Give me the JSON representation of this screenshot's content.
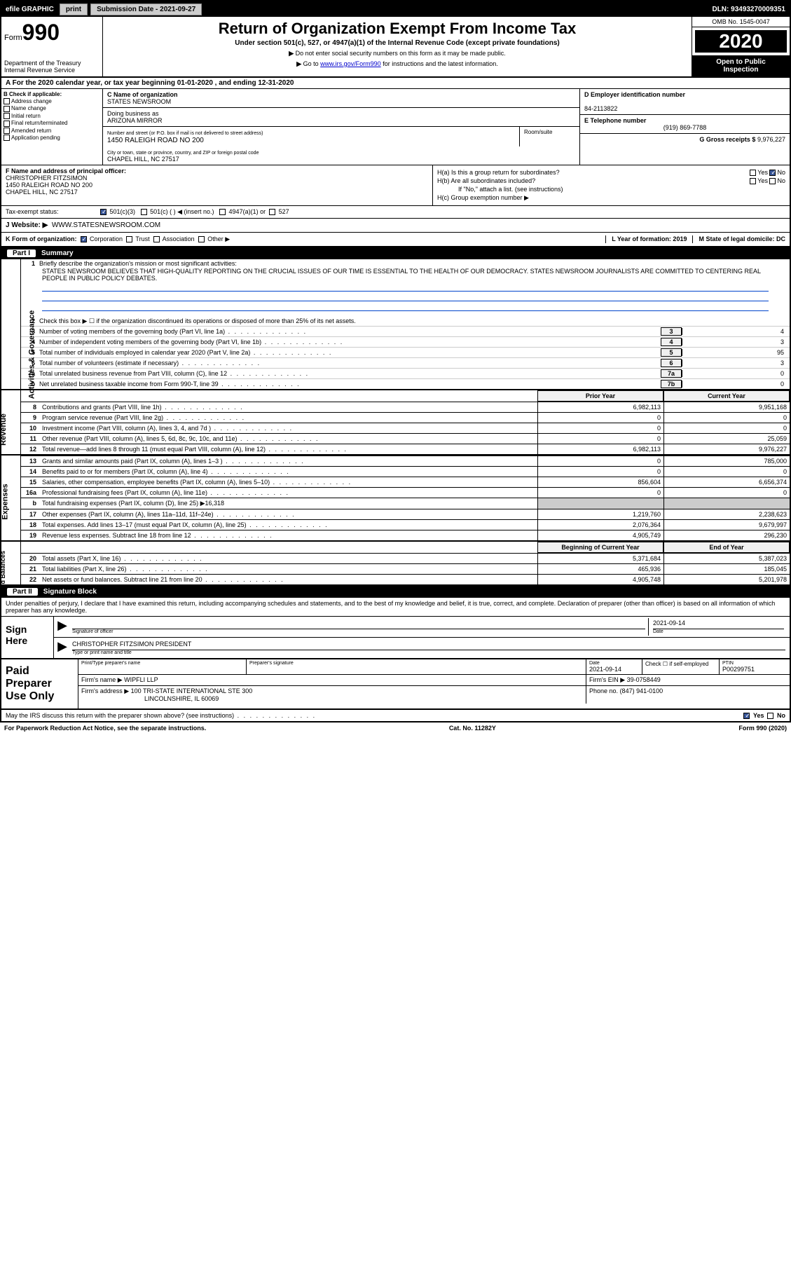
{
  "topbar": {
    "efile": "efile GRAPHIC",
    "print": "print",
    "subdate_label": "Submission Date - ",
    "subdate": "2021-09-27",
    "dln": "DLN: 93493270009351"
  },
  "header": {
    "form": "Form",
    "formnum": "990",
    "dept": "Department of the Treasury\nInternal Revenue Service",
    "title": "Return of Organization Exempt From Income Tax",
    "sub": "Under section 501(c), 527, or 4947(a)(1) of the Internal Revenue Code (except private foundations)",
    "note1": "Do not enter social security numbers on this form as it may be made public.",
    "note2": "Go to",
    "link": "www.irs.gov/Form990",
    "note3": "for instructions and the latest information.",
    "omb": "OMB No. 1545-0047",
    "year": "2020",
    "insp1": "Open to Public",
    "insp2": "Inspection"
  },
  "sectionA": "For the 2020 calendar year, or tax year beginning 01-01-2020    , and ending 12-31-2020",
  "colB": {
    "hdr": "B Check if applicable:",
    "items": [
      "Address change",
      "Name change",
      "Initial return",
      "Final return/terminated",
      "Amended return",
      "Application pending"
    ]
  },
  "colC": {
    "name_label": "C Name of organization",
    "name": "STATES NEWSROOM",
    "dba_label": "Doing business as",
    "dba": "ARIZONA MIRROR",
    "addr_label": "Number and street (or P.O. box if mail is not delivered to street address)",
    "room_label": "Room/suite",
    "addr": "1450 RALEIGH ROAD NO 200",
    "city_label": "City or town, state or province, country, and ZIP or foreign postal code",
    "city": "CHAPEL HILL, NC  27517"
  },
  "colD": {
    "d_label": "D Employer identification number",
    "d_val": "84-2113822",
    "e_label": "E Telephone number",
    "e_val": "(919) 869-7788",
    "g_label": "G Gross receipts $",
    "g_val": "9,976,227"
  },
  "rowF": {
    "f_label": "F  Name and address of principal officer:",
    "f_name": "CHRISTOPHER FITZSIMON",
    "f_addr1": "1450 RALEIGH ROAD NO 200",
    "f_addr2": "CHAPEL HILL, NC  27517"
  },
  "rowH": {
    "ha": "H(a)  Is this a group return for subordinates?",
    "hb": "H(b)  Are all subordinates included?",
    "hb_note": "If \"No,\" attach a list. (see instructions)",
    "hc": "H(c)  Group exemption number ▶",
    "yes": "Yes",
    "no": "No"
  },
  "taxstatus": {
    "label": "Tax-exempt status:",
    "opt1": "501(c)(3)",
    "opt2": "501(c) (  ) ◀ (insert no.)",
    "opt3": "4947(a)(1) or",
    "opt4": "527"
  },
  "website": {
    "label": "J    Website: ▶",
    "val": "WWW.STATESNEWSROOM.COM"
  },
  "rowK": {
    "k": "K Form of organization:",
    "corp": "Corporation",
    "trust": "Trust",
    "assoc": "Association",
    "other": "Other ▶",
    "l": "L Year of formation: 2019",
    "m": "M State of legal domicile: DC"
  },
  "part1": {
    "title": "Part I",
    "name": "Summary",
    "line1": "Briefly describe the organization's mission or most significant activities:",
    "mission": "STATES NEWSROOM BELIEVES THAT HIGH-QUALITY REPORTING ON THE CRUCIAL ISSUES OF OUR TIME IS ESSENTIAL TO THE HEALTH OF OUR DEMOCRACY. STATES NEWSROOM JOURNALISTS ARE COMMITTED TO CENTERING REAL PEOPLE IN PUBLIC POLICY DEBATES.",
    "line2": "Check this box ▶ ☐  if the organization discontinued its operations or disposed of more than 25% of its net assets.",
    "rows": [
      {
        "n": "3",
        "t": "Number of voting members of the governing body (Part VI, line 1a)",
        "box": "3",
        "v": "4"
      },
      {
        "n": "4",
        "t": "Number of independent voting members of the governing body (Part VI, line 1b)",
        "box": "4",
        "v": "3"
      },
      {
        "n": "5",
        "t": "Total number of individuals employed in calendar year 2020 (Part V, line 2a)",
        "box": "5",
        "v": "95"
      },
      {
        "n": "6",
        "t": "Total number of volunteers (estimate if necessary)",
        "box": "6",
        "v": "3"
      },
      {
        "n": "7a",
        "t": "Total unrelated business revenue from Part VIII, column (C), line 12",
        "box": "7a",
        "v": "0"
      },
      {
        "n": "b",
        "t": "Net unrelated business taxable income from Form 990-T, line 39",
        "box": "7b",
        "v": "0"
      }
    ],
    "hdr_prior": "Prior Year",
    "hdr_curr": "Current Year",
    "rev": [
      {
        "n": "8",
        "t": "Contributions and grants (Part VIII, line 1h)",
        "p": "6,982,113",
        "c": "9,951,168"
      },
      {
        "n": "9",
        "t": "Program service revenue (Part VIII, line 2g)",
        "p": "0",
        "c": "0"
      },
      {
        "n": "10",
        "t": "Investment income (Part VIII, column (A), lines 3, 4, and 7d )",
        "p": "0",
        "c": "0"
      },
      {
        "n": "11",
        "t": "Other revenue (Part VIII, column (A), lines 5, 6d, 8c, 9c, 10c, and 11e)",
        "p": "0",
        "c": "25,059"
      },
      {
        "n": "12",
        "t": "Total revenue—add lines 8 through 11 (must equal Part VIII, column (A), line 12)",
        "p": "6,982,113",
        "c": "9,976,227"
      }
    ],
    "exp": [
      {
        "n": "13",
        "t": "Grants and similar amounts paid (Part IX, column (A), lines 1–3 )",
        "p": "0",
        "c": "785,000"
      },
      {
        "n": "14",
        "t": "Benefits paid to or for members (Part IX, column (A), line 4)",
        "p": "0",
        "c": "0"
      },
      {
        "n": "15",
        "t": "Salaries, other compensation, employee benefits (Part IX, column (A), lines 5–10)",
        "p": "856,604",
        "c": "6,656,374"
      },
      {
        "n": "16a",
        "t": "Professional fundraising fees (Part IX, column (A), line 11e)",
        "p": "0",
        "c": "0"
      },
      {
        "n": "b",
        "t": "Total fundraising expenses (Part IX, column (D), line 25) ▶16,318",
        "p": "",
        "c": "",
        "grey": true
      },
      {
        "n": "17",
        "t": "Other expenses (Part IX, column (A), lines 11a–11d, 11f–24e)",
        "p": "1,219,760",
        "c": "2,238,623"
      },
      {
        "n": "18",
        "t": "Total expenses. Add lines 13–17 (must equal Part IX, column (A), line 25)",
        "p": "2,076,364",
        "c": "9,679,997"
      },
      {
        "n": "19",
        "t": "Revenue less expenses. Subtract line 18 from line 12",
        "p": "4,905,749",
        "c": "296,230"
      }
    ],
    "hdr_beg": "Beginning of Current Year",
    "hdr_end": "End of Year",
    "net": [
      {
        "n": "20",
        "t": "Total assets (Part X, line 16)",
        "p": "5,371,684",
        "c": "5,387,023"
      },
      {
        "n": "21",
        "t": "Total liabilities (Part X, line 26)",
        "p": "465,936",
        "c": "185,045"
      },
      {
        "n": "22",
        "t": "Net assets or fund balances. Subtract line 21 from line 20",
        "p": "4,905,748",
        "c": "5,201,978"
      }
    ],
    "vlabels": [
      "Activities & Governance",
      "Revenue",
      "Expenses",
      "Net Assets or\nFund Balances"
    ]
  },
  "part2": {
    "title": "Part II",
    "name": "Signature Block",
    "decl": "Under penalties of perjury, I declare that I have examined this return, including accompanying schedules and statements, and to the best of my knowledge and belief, it is true, correct, and complete. Declaration of preparer (other than officer) is based on all information of which preparer has any knowledge.",
    "sign_here": "Sign Here",
    "sig_label": "Signature of officer",
    "date_label": "Date",
    "date": "2021-09-14",
    "officer": "CHRISTOPHER FITZSIMON  PRESIDENT",
    "officer_label": "Type or print name and title",
    "paid": "Paid Preparer Use Only",
    "prep_name_label": "Print/Type preparer's name",
    "prep_sig_label": "Preparer's signature",
    "prep_date": "2021-09-14",
    "check_self": "Check ☐ if self-employed",
    "ptin_label": "PTIN",
    "ptin": "P00299751",
    "firm_name_label": "Firm's name    ▶",
    "firm_name": "WIPFLI LLP",
    "firm_ein_label": "Firm's EIN ▶",
    "firm_ein": "39-0758449",
    "firm_addr_label": "Firm's address ▶",
    "firm_addr1": "100 TRI-STATE INTERNATIONAL STE 300",
    "firm_addr2": "LINCOLNSHIRE, IL  60069",
    "phone_label": "Phone no.",
    "phone": "(847) 941-0100",
    "discuss": "May the IRS discuss this return with the preparer shown above? (see instructions)",
    "paperwork": "For Paperwork Reduction Act Notice, see the separate instructions.",
    "cat": "Cat. No. 11282Y",
    "formpg": "Form 990 (2020)"
  }
}
